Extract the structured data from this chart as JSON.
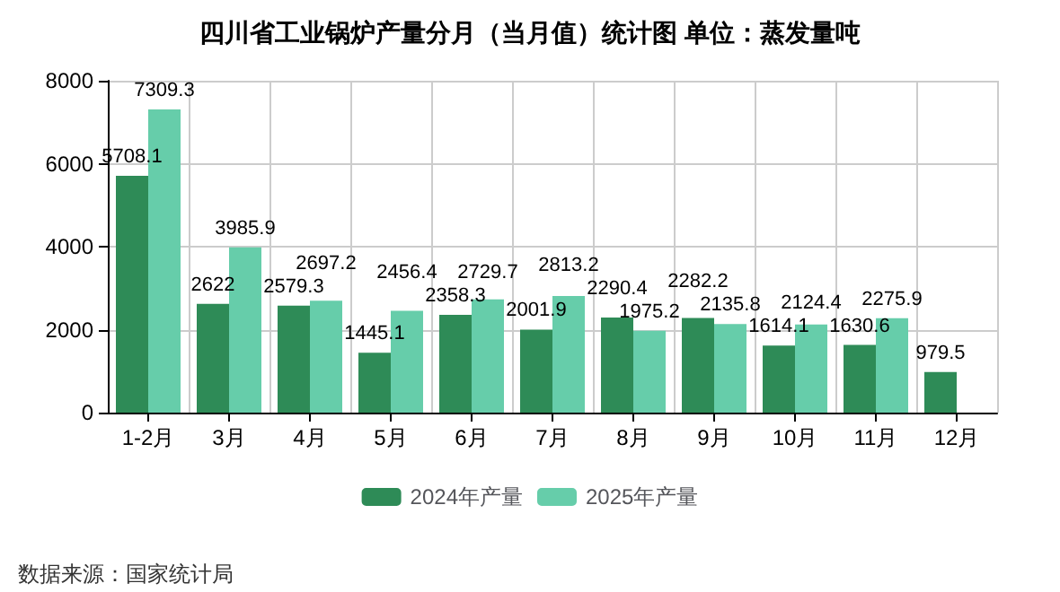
{
  "chart_data": {
    "type": "bar",
    "title": "四川省工业锅炉产量分月（当月值）统计图 单位：蒸发量吨",
    "categories": [
      "1-2月",
      "3月",
      "4月",
      "5月",
      "6月",
      "7月",
      "8月",
      "9月",
      "10月",
      "11月",
      "12月"
    ],
    "series": [
      {
        "name": "2024年产量",
        "color": "#2e8b57",
        "values": [
          5708.1,
          2622,
          2579.3,
          1445.1,
          2358.3,
          2001.9,
          2290.4,
          2282.2,
          1614.1,
          1630.6,
          979.5
        ]
      },
      {
        "name": "2025年产量",
        "color": "#66cdaa",
        "values": [
          7309.3,
          3985.9,
          2697.2,
          2456.4,
          2729.7,
          2813.2,
          1975.2,
          2135.8,
          2124.4,
          2275.9,
          null
        ]
      }
    ],
    "ylim": [
      0,
      8000
    ],
    "yticks": [
      0,
      2000,
      4000,
      6000,
      8000
    ],
    "grid": true,
    "legend": "bottom",
    "data_labels": true,
    "annotations": [
      "数据来源：国家统计局"
    ]
  }
}
